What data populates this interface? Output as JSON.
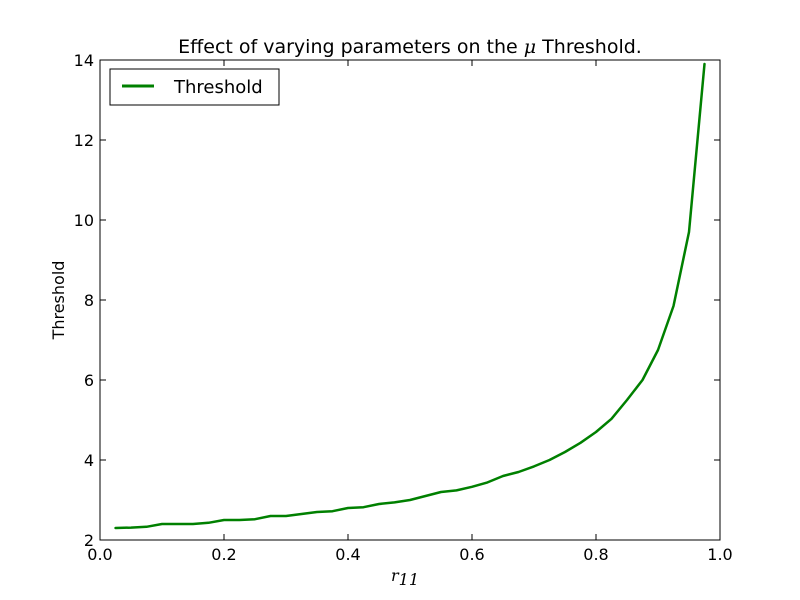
{
  "chart_data": {
    "type": "line",
    "title_prefix": "Effect of varying parameters on the ",
    "title_symbol": "μ",
    "title_suffix": " Threshold.",
    "xlabel_base": "r",
    "xlabel_sub": "11",
    "ylabel": "Threshold",
    "xlim": [
      0.0,
      1.0
    ],
    "ylim": [
      2,
      14
    ],
    "xticks": [
      "0.0",
      "0.2",
      "0.4",
      "0.6",
      "0.8",
      "1.0"
    ],
    "yticks": [
      "2",
      "4",
      "6",
      "8",
      "10",
      "12",
      "14"
    ],
    "grid": false,
    "legend_position": "top-left",
    "series": [
      {
        "name": "Threshold",
        "color": "#008000",
        "x": [
          0.025,
          0.05,
          0.075,
          0.1,
          0.125,
          0.15,
          0.175,
          0.2,
          0.225,
          0.25,
          0.275,
          0.3,
          0.325,
          0.35,
          0.375,
          0.4,
          0.425,
          0.45,
          0.475,
          0.5,
          0.525,
          0.55,
          0.575,
          0.6,
          0.625,
          0.65,
          0.675,
          0.7,
          0.725,
          0.75,
          0.775,
          0.8,
          0.825,
          0.85,
          0.875,
          0.9,
          0.925,
          0.95,
          0.975
        ],
        "y": [
          2.3,
          2.31,
          2.33,
          2.4,
          2.4,
          2.4,
          2.43,
          2.5,
          2.5,
          2.52,
          2.6,
          2.6,
          2.65,
          2.7,
          2.72,
          2.8,
          2.82,
          2.9,
          2.94,
          3.0,
          3.1,
          3.2,
          3.24,
          3.33,
          3.44,
          3.6,
          3.7,
          3.84,
          4.0,
          4.2,
          4.43,
          4.7,
          5.03,
          5.5,
          6.0,
          6.75,
          7.85,
          9.7,
          13.9
        ]
      }
    ]
  }
}
